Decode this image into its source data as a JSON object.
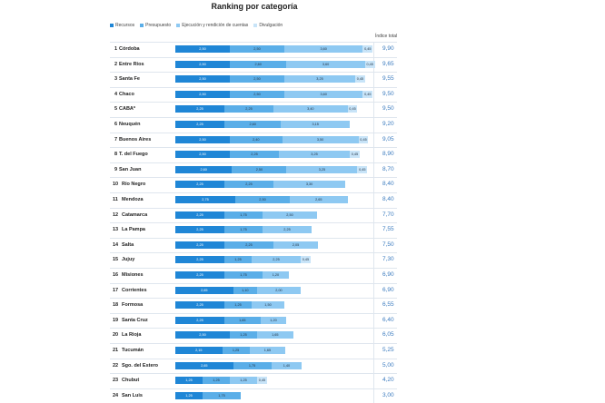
{
  "colors": [
    "#1f86d6",
    "#5aaee8",
    "#8ec9f2",
    "#c8e4f8"
  ],
  "chart_data": {
    "type": "bar",
    "orientation": "horizontal",
    "stacked": true,
    "title": "Ranking por categoría",
    "legend_position": "top",
    "total_header": "Índice total",
    "series": [
      {
        "name": "Recursos"
      },
      {
        "name": "Presupuesto"
      },
      {
        "name": "Ejecución y rendición de cuentas"
      },
      {
        "name": "Divulgación"
      }
    ],
    "rows": [
      {
        "rank": "1",
        "name": "Córdoba",
        "values": [
          2.5,
          2.5,
          3.6,
          0.45
        ],
        "labels": [
          "2,50",
          "2,50",
          "3,60",
          "0,45"
        ],
        "total": "9,90"
      },
      {
        "rank": "2",
        "name": "Entre Ríos",
        "values": [
          2.5,
          2.6,
          3.6,
          0.45
        ],
        "labels": [
          "2,50",
          "2,60",
          "3,60",
          "0,45"
        ],
        "total": "9,65"
      },
      {
        "rank": "3",
        "name": "Santa Fe",
        "values": [
          2.5,
          2.5,
          3.25,
          0.45
        ],
        "labels": [
          "2,50",
          "2,50",
          "3,25",
          "0,45"
        ],
        "total": "9,55"
      },
      {
        "rank": "4",
        "name": "Chaco",
        "values": [
          2.5,
          2.5,
          3.6,
          0.45
        ],
        "labels": [
          "2,50",
          "2,50",
          "3,60",
          "0,45"
        ],
        "total": "9,50"
      },
      {
        "rank": "5",
        "name": "CABA*",
        "values": [
          2.25,
          2.25,
          3.4,
          0.45
        ],
        "labels": [
          "2,25",
          "2,25",
          "3,40",
          "0,45"
        ],
        "total": "9,50"
      },
      {
        "rank": "6",
        "name": "Neuquén",
        "values": [
          2.25,
          2.6,
          3.15,
          0
        ],
        "labels": [
          "2,25",
          "2,60",
          "3,15",
          ""
        ],
        "total": "9,20"
      },
      {
        "rank": "7",
        "name": "Buenos Aires",
        "values": [
          2.5,
          2.4,
          3.5,
          0.45
        ],
        "labels": [
          "2,50",
          "2,40",
          "3,50",
          "0,45"
        ],
        "total": "9,05"
      },
      {
        "rank": "8",
        "name": "T. del Fuego",
        "values": [
          2.5,
          2.25,
          3.25,
          0.45
        ],
        "labels": [
          "2,50",
          "2,25",
          "3,25",
          "0,45"
        ],
        "total": "8,90"
      },
      {
        "rank": "9",
        "name": "San Juan",
        "values": [
          2.6,
          2.5,
          3.25,
          0.45
        ],
        "labels": [
          "2,60",
          "2,50",
          "3,25",
          "0,45"
        ],
        "total": "8,70"
      },
      {
        "rank": "10",
        "name": "Río Negro",
        "values": [
          2.25,
          2.25,
          3.3,
          0
        ],
        "labels": [
          "2,25",
          "2,25",
          "3,30",
          ""
        ],
        "total": "8,40"
      },
      {
        "rank": "11",
        "name": "Mendoza",
        "values": [
          2.75,
          2.5,
          2.65,
          0
        ],
        "labels": [
          "2,75",
          "2,50",
          "2,65",
          ""
        ],
        "total": "8,40"
      },
      {
        "rank": "12",
        "name": "Catamarca",
        "values": [
          2.25,
          1.75,
          2.5,
          0
        ],
        "labels": [
          "2,25",
          "1,75",
          "2,50",
          ""
        ],
        "total": "7,70"
      },
      {
        "rank": "13",
        "name": "La Pampa",
        "values": [
          2.25,
          1.75,
          2.25,
          0
        ],
        "labels": [
          "2,25",
          "1,75",
          "2,25",
          ""
        ],
        "total": "7,55"
      },
      {
        "rank": "14",
        "name": "Salta",
        "values": [
          2.25,
          2.25,
          2.05,
          0
        ],
        "labels": [
          "2,25",
          "2,25",
          "2,05",
          ""
        ],
        "total": "7,50"
      },
      {
        "rank": "15",
        "name": "Jujuy",
        "values": [
          2.25,
          1.25,
          2.25,
          0.45
        ],
        "labels": [
          "2,25",
          "1,25",
          "2,25",
          "0,45"
        ],
        "total": "7,30"
      },
      {
        "rank": "16",
        "name": "Misiones",
        "values": [
          2.25,
          1.75,
          1.2,
          0
        ],
        "labels": [
          "2,25",
          "1,75",
          "1,20",
          ""
        ],
        "total": "6,90"
      },
      {
        "rank": "17",
        "name": "Corrientes",
        "values": [
          2.65,
          1.1,
          2.0,
          0
        ],
        "labels": [
          "2,65",
          "1,10",
          "2,00",
          ""
        ],
        "total": "6,90"
      },
      {
        "rank": "18",
        "name": "Formosa",
        "values": [
          2.25,
          1.25,
          1.5,
          0
        ],
        "labels": [
          "2,25",
          "1,25",
          "1,50",
          ""
        ],
        "total": "6,55"
      },
      {
        "rank": "19",
        "name": "Santa Cruz",
        "values": [
          2.25,
          1.65,
          1.2,
          0
        ],
        "labels": [
          "2,25",
          "1,65",
          "1,20",
          ""
        ],
        "total": "6,40"
      },
      {
        "rank": "20",
        "name": "La Rioja",
        "values": [
          2.5,
          1.25,
          1.65,
          0
        ],
        "labels": [
          "2,50",
          "1,25",
          "1,65",
          ""
        ],
        "total": "6,05"
      },
      {
        "rank": "21",
        "name": "Tucumán",
        "values": [
          2.15,
          1.25,
          1.65,
          0
        ],
        "labels": [
          "2,15",
          "1,25",
          "1,65",
          ""
        ],
        "total": "5,25"
      },
      {
        "rank": "22",
        "name": "Sgo. del Estero",
        "values": [
          2.65,
          1.75,
          1.4,
          0
        ],
        "labels": [
          "2,65",
          "1,75",
          "1,40",
          ""
        ],
        "total": "5,00"
      },
      {
        "rank": "23",
        "name": "Chubut",
        "values": [
          1.25,
          1.25,
          1.25,
          0.45
        ],
        "labels": [
          "1,25",
          "1,25",
          "1,25",
          "0,45"
        ],
        "total": "4,20"
      },
      {
        "rank": "24",
        "name": "San Luis",
        "values": [
          1.25,
          1.75,
          0,
          0
        ],
        "labels": [
          "1,25",
          "1,75",
          "",
          ""
        ],
        "total": "3,00"
      }
    ]
  }
}
